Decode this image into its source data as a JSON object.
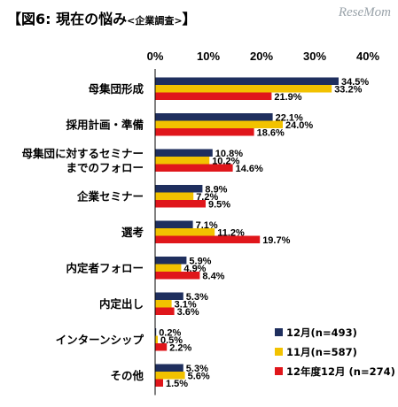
{
  "header": {
    "title_main": "【図6: 現在の悩み",
    "title_sub": "<企業調査>",
    "title_end": "】",
    "watermark": "ReseMom"
  },
  "chart_data": {
    "type": "bar",
    "orientation": "horizontal",
    "title": "【図6: 現在の悩み<企業調査>】",
    "xlim": [
      0,
      40
    ],
    "x_ticks": [
      "0%",
      "10%",
      "20%",
      "30%",
      "40%"
    ],
    "tick_values": [
      0,
      10,
      20,
      30,
      40
    ],
    "categories": [
      [
        "母集団形成"
      ],
      [
        "採用計画・準備"
      ],
      [
        "母集団に対するセミナー",
        "までのフォロー"
      ],
      [
        "企業セミナー"
      ],
      [
        "選考"
      ],
      [
        "内定者フォロー"
      ],
      [
        "内定出し"
      ],
      [
        "インターンシップ"
      ],
      [
        "その他"
      ]
    ],
    "series": [
      {
        "name": "12月(n=493)",
        "color": "#1f2f5e",
        "values": [
          34.5,
          22.1,
          10.8,
          8.9,
          7.1,
          5.9,
          5.3,
          0.2,
          5.3
        ],
        "labels": [
          "34.5%",
          "22.1%",
          "10.8%",
          "8.9%",
          "7.1%",
          "5.9%",
          "5.3%",
          "0.2%",
          "5.3%"
        ]
      },
      {
        "name": "11月(n=587)",
        "color": "#f2c200",
        "values": [
          33.2,
          24.0,
          10.2,
          7.2,
          11.2,
          4.9,
          3.1,
          0.5,
          5.6
        ],
        "labels": [
          "33.2%",
          "24.0%",
          "10.2%",
          "7.2%",
          "11.2%",
          "4.9%",
          "3.1%",
          "0.5%",
          "5.6%"
        ]
      },
      {
        "name": "12年度12月 (n=274)",
        "color": "#e0161b",
        "values": [
          21.9,
          18.6,
          14.6,
          9.5,
          19.7,
          8.4,
          3.6,
          2.2,
          1.5
        ],
        "labels": [
          "21.9%",
          "18.6%",
          "14.6%",
          "9.5%",
          "19.7%",
          "8.4%",
          "3.6%",
          "2.2%",
          "1.5%"
        ]
      }
    ],
    "legend_position": "bottom-right",
    "grid": false
  }
}
